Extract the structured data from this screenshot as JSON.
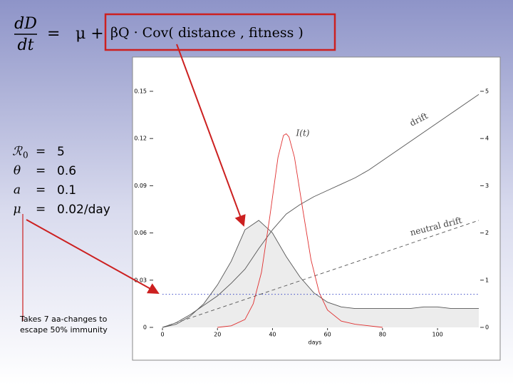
{
  "equation": {
    "numerator": "dD",
    "denominator": "dt",
    "equals": "=",
    "lhs": "μ +",
    "highlight": "βQ · Cov(  distance , fitness  )"
  },
  "parameters": [
    {
      "symbol": "ℛ",
      "subscript": "0",
      "equals": "=",
      "value": "5"
    },
    {
      "symbol": "θ",
      "equals": "=",
      "value": "0.6"
    },
    {
      "symbol": "a",
      "equals": "=",
      "value": "0.1"
    },
    {
      "symbol": "μ",
      "equals": "=",
      "value": "0.02/day"
    }
  ],
  "note": [
    "Takes 7 aa-changes to",
    "escape 50% immunity"
  ],
  "chart_data": {
    "type": "line",
    "x_label": "days",
    "xlim": [
      0,
      115
    ],
    "xticks": [
      0,
      20,
      40,
      60,
      80,
      100
    ],
    "ylim": [
      0,
      0.15
    ],
    "yticks": [
      0,
      0.03,
      0.06,
      0.09,
      0.12,
      0.15
    ],
    "y2lim": [
      0,
      5
    ],
    "y2ticks": [
      0,
      1,
      2,
      3,
      4,
      5
    ],
    "series": [
      {
        "color": "#555555",
        "style": "solid",
        "fill": true,
        "x": [
          0,
          5,
          10,
          15,
          20,
          25,
          30,
          35,
          40,
          45,
          50,
          55,
          60,
          65,
          70,
          75,
          80,
          85,
          90,
          95,
          100,
          105,
          110,
          115
        ],
        "values": [
          0,
          0.002,
          0.007,
          0.015,
          0.027,
          0.042,
          0.062,
          0.068,
          0.06,
          0.045,
          0.032,
          0.022,
          0.016,
          0.013,
          0.012,
          0.012,
          0.012,
          0.012,
          0.012,
          0.013,
          0.013,
          0.012,
          0.012,
          0.012
        ]
      },
      {
        "name": "drift",
        "color": "#555555",
        "style": "solid",
        "x": [
          0,
          5,
          10,
          15,
          20,
          25,
          30,
          35,
          40,
          45,
          50,
          55,
          60,
          65,
          70,
          75,
          80,
          85,
          90,
          95,
          100,
          105,
          110,
          115
        ],
        "values": [
          0,
          0.003,
          0.008,
          0.014,
          0.02,
          0.028,
          0.037,
          0.05,
          0.062,
          0.072,
          0.078,
          0.083,
          0.087,
          0.091,
          0.095,
          0.1,
          0.106,
          0.112,
          0.118,
          0.124,
          0.13,
          0.136,
          0.142,
          0.148
        ]
      },
      {
        "name": "neutral drift",
        "color": "#555555",
        "style": "dashed",
        "x": [
          0,
          115
        ],
        "values": [
          0,
          0.068
        ]
      },
      {
        "name": "I(t)",
        "color": "#e03030",
        "style": "solid",
        "x": [
          20,
          25,
          30,
          33,
          36,
          39,
          42,
          44,
          45,
          46,
          48,
          51,
          54,
          57,
          60,
          65,
          70,
          80
        ],
        "values": [
          0,
          0.001,
          0.005,
          0.015,
          0.035,
          0.07,
          0.108,
          0.122,
          0.123,
          0.121,
          0.108,
          0.075,
          0.043,
          0.022,
          0.011,
          0.004,
          0.002,
          0
        ]
      },
      {
        "color": "#2030c0",
        "style": "dotted",
        "x": [
          0,
          115
        ],
        "values": [
          0.021,
          0.021
        ]
      }
    ]
  }
}
